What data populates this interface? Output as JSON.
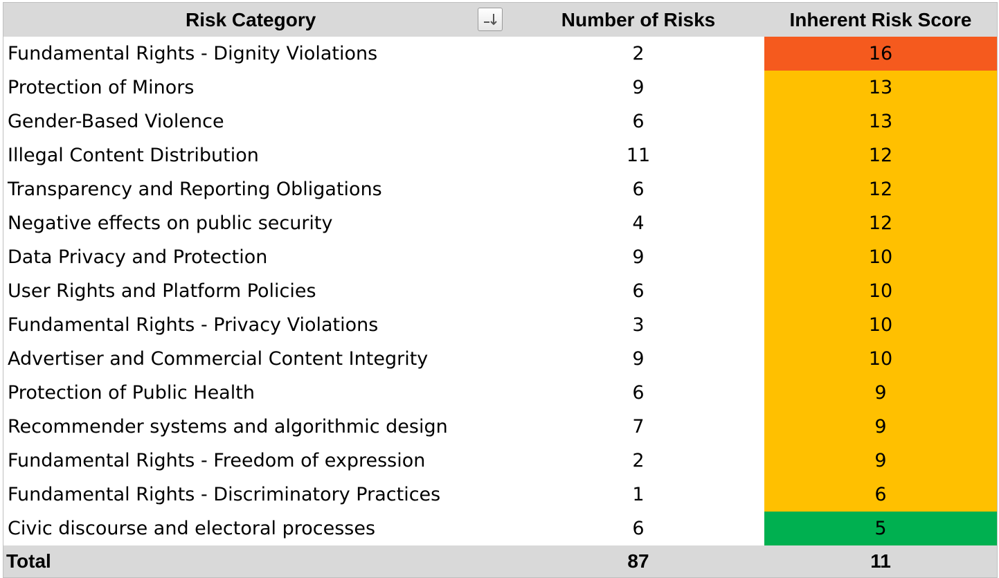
{
  "header": {
    "col_category": "Risk Category",
    "col_count": "Number of Risks",
    "col_score": "Inherent Risk Score"
  },
  "sort_icon": "sort-descending-icon",
  "score_colors": {
    "red": "#f55a1e",
    "orange": "#ffc000",
    "green": "#00b050"
  },
  "rows": [
    {
      "category": "Fundamental Rights - Dignity Violations",
      "count": "2",
      "score": "16",
      "level": "red"
    },
    {
      "category": "Protection of Minors",
      "count": "9",
      "score": "13",
      "level": "orange"
    },
    {
      "category": "Gender-Based Violence",
      "count": "6",
      "score": "13",
      "level": "orange"
    },
    {
      "category": "Illegal Content Distribution",
      "count": "11",
      "score": "12",
      "level": "orange"
    },
    {
      "category": "Transparency and Reporting Obligations",
      "count": "6",
      "score": "12",
      "level": "orange"
    },
    {
      "category": "Negative effects on public security",
      "count": "4",
      "score": "12",
      "level": "orange"
    },
    {
      "category": "Data Privacy and Protection",
      "count": "9",
      "score": "10",
      "level": "orange"
    },
    {
      "category": "User Rights and Platform Policies",
      "count": "6",
      "score": "10",
      "level": "orange"
    },
    {
      "category": "Fundamental Rights - Privacy Violations",
      "count": "3",
      "score": "10",
      "level": "orange"
    },
    {
      "category": "Advertiser and Commercial Content Integrity",
      "count": "9",
      "score": "10",
      "level": "orange"
    },
    {
      "category": "Protection of Public Health",
      "count": "6",
      "score": "9",
      "level": "orange"
    },
    {
      "category": "Recommender systems and algorithmic design",
      "count": "7",
      "score": "9",
      "level": "orange"
    },
    {
      "category": "Fundamental Rights - Freedom of expression",
      "count": "2",
      "score": "9",
      "level": "orange"
    },
    {
      "category": "Fundamental Rights - Discriminatory Practices",
      "count": "1",
      "score": "6",
      "level": "orange"
    },
    {
      "category": "Civic discourse and electoral processes",
      "count": "6",
      "score": "5",
      "level": "green"
    }
  ],
  "total": {
    "label": "Total",
    "count": "87",
    "score": "11"
  }
}
